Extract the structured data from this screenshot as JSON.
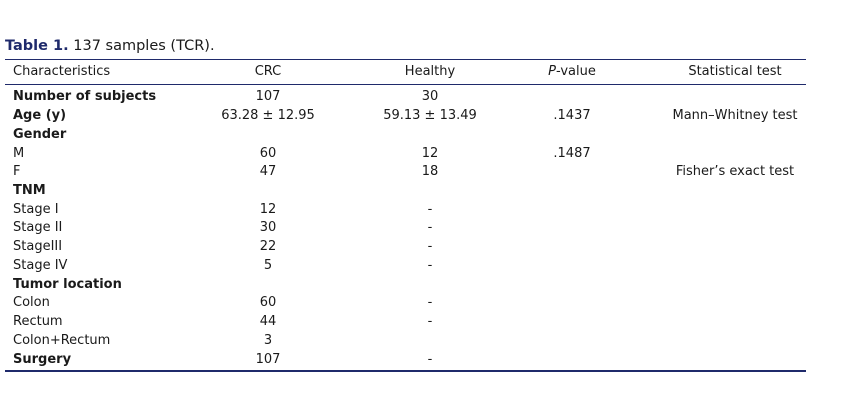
{
  "caption": {
    "label": "Table 1.",
    "text": " 137 samples (TCR)."
  },
  "header": {
    "characteristics": "Characteristics",
    "crc": "CRC",
    "healthy": "Healthy",
    "p_italic": "P",
    "p_rest": "-value",
    "test": "Statistical test"
  },
  "rows": [
    {
      "label": "Number of subjects",
      "crc": "107",
      "healthy": "30",
      "p": "",
      "test": ""
    },
    {
      "label": "Age (y)",
      "crc": "63.28 ± 12.95",
      "healthy": "59.13 ± 13.49",
      "p": ".1437",
      "test": "Mann–Whitney test"
    },
    {
      "label": "Gender",
      "crc": "",
      "healthy": "",
      "p": "",
      "test": ""
    },
    {
      "label": "M",
      "crc": "60",
      "healthy": "12",
      "p": ".1487",
      "test": ""
    },
    {
      "label": "F",
      "crc": "47",
      "healthy": "18",
      "p": "",
      "test": "Fisher’s exact test"
    },
    {
      "label": "TNM",
      "crc": "",
      "healthy": "",
      "p": "",
      "test": ""
    },
    {
      "label": "Stage I",
      "crc": "12",
      "healthy": "-",
      "p": "",
      "test": ""
    },
    {
      "label": "Stage II",
      "crc": "30",
      "healthy": "-",
      "p": "",
      "test": ""
    },
    {
      "label": "StageIII",
      "crc": "22",
      "healthy": "-",
      "p": "",
      "test": ""
    },
    {
      "label": "Stage IV",
      "crc": "5",
      "healthy": "-",
      "p": "",
      "test": ""
    },
    {
      "label": "Tumor location",
      "crc": "",
      "healthy": "",
      "p": "",
      "test": ""
    },
    {
      "label": "Colon",
      "crc": "60",
      "healthy": "-",
      "p": "",
      "test": ""
    },
    {
      "label": "Rectum",
      "crc": "44",
      "healthy": "-",
      "p": "",
      "test": ""
    },
    {
      "label": "Colon+Rectum",
      "crc": "3",
      "healthy": "",
      "p": "",
      "test": ""
    },
    {
      "label": "Surgery",
      "crc": "107",
      "healthy": "-",
      "p": "",
      "test": ""
    }
  ]
}
